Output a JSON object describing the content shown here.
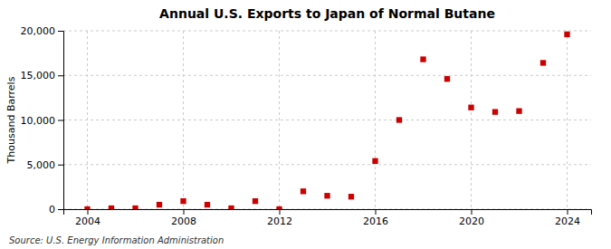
{
  "chart_data": {
    "type": "scatter",
    "title": "Annual U.S. Exports to Japan of Normal Butane",
    "ylabel": "Thousand Barrels",
    "annotation": "Source: U.S. Energy Information Administration",
    "x": [
      2004,
      2005,
      2006,
      2007,
      2008,
      2009,
      2010,
      2011,
      2012,
      2013,
      2014,
      2015,
      2016,
      2017,
      2018,
      2019,
      2020,
      2021,
      2022,
      2023,
      2024
    ],
    "values": [
      0,
      100,
      100,
      500,
      900,
      500,
      100,
      900,
      0,
      2000,
      1500,
      1400,
      5400,
      10000,
      16800,
      14600,
      11400,
      10900,
      11000,
      16400,
      19600
    ],
    "color": "#cc0000",
    "marker": "square",
    "xlim": [
      2003,
      2025
    ],
    "ylim": [
      0,
      20000
    ],
    "xticks": [
      2004,
      2008,
      2012,
      2016,
      2020,
      2024
    ],
    "yticks": [
      0,
      {
        "value": 5000,
        "label": "5,000"
      },
      {
        "value": 10000,
        "label": "10,000"
      },
      {
        "value": 15000,
        "label": "15,000"
      },
      {
        "value": 20000,
        "label": "20,000"
      }
    ],
    "grid": true
  }
}
